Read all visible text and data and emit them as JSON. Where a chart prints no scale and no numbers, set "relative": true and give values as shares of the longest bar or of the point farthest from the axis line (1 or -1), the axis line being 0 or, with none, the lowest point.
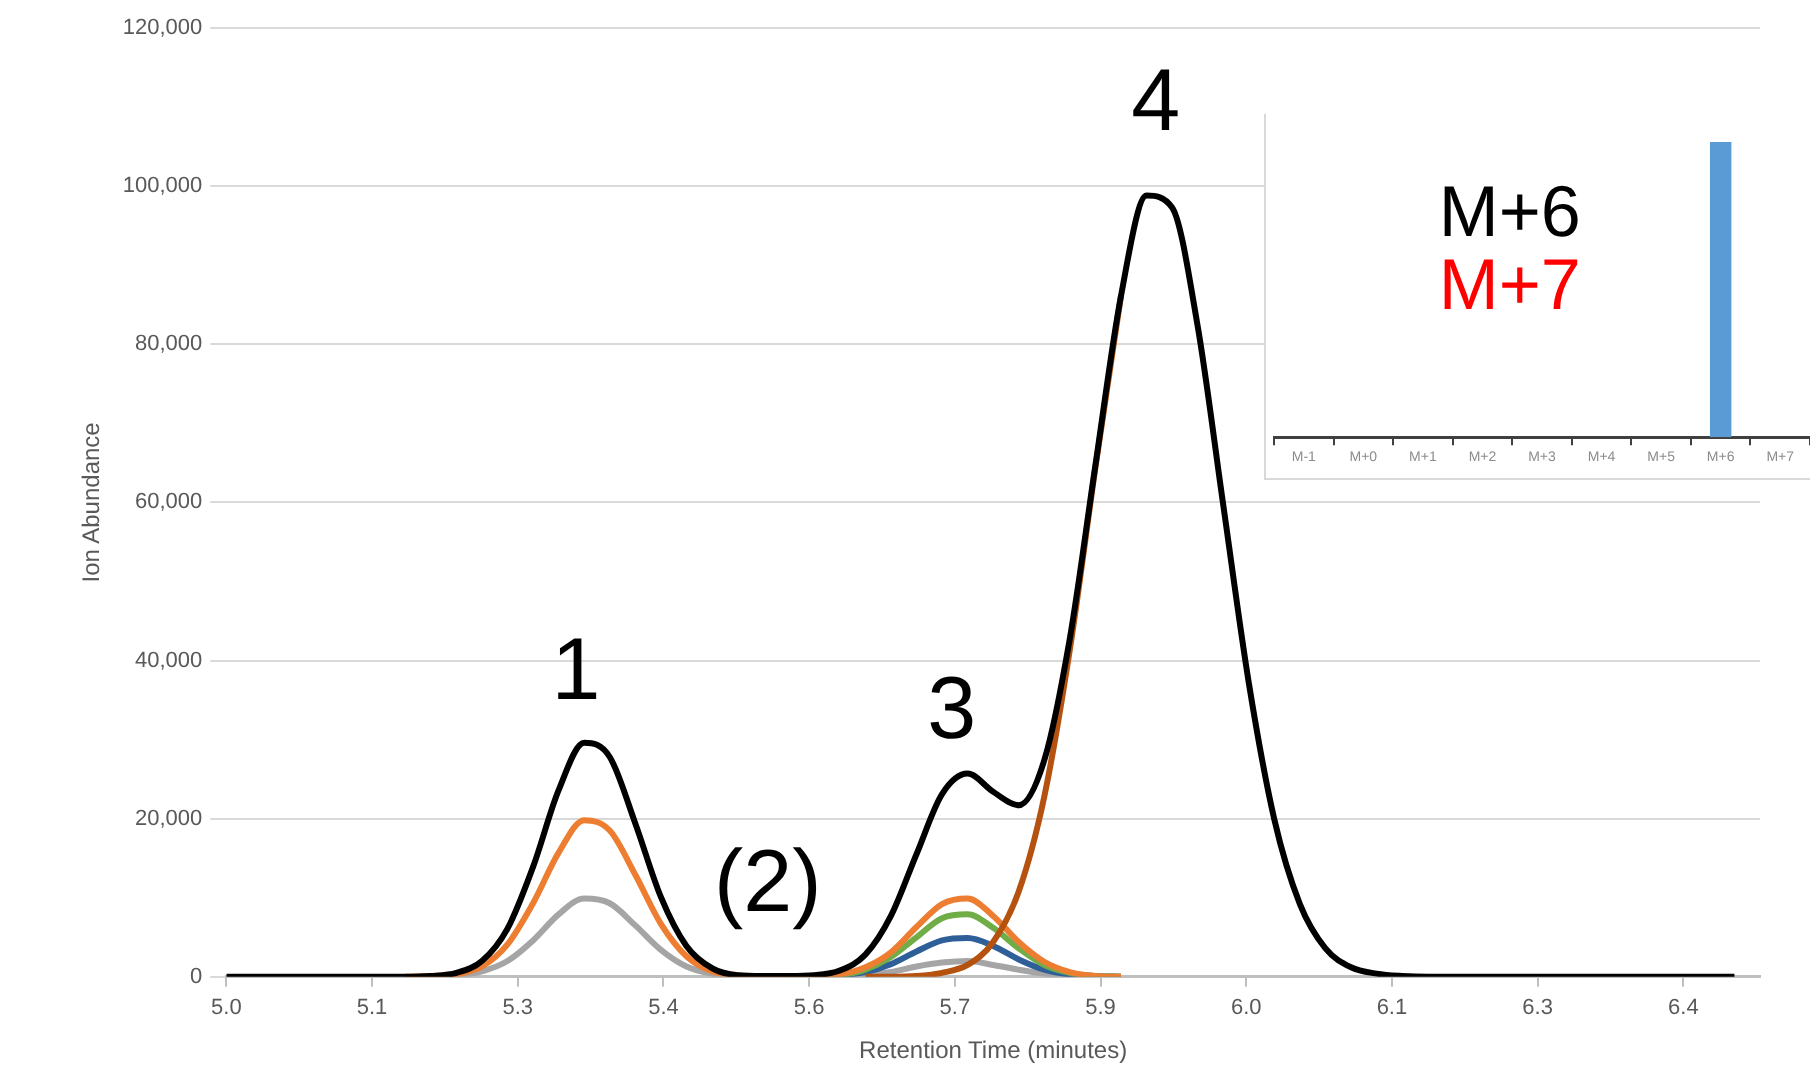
{
  "chart_data": [
    {
      "type": "line",
      "xlabel": "Retention Time (minutes)",
      "ylabel": "Ion Abundance",
      "xlim": [
        5.0,
        6.5
      ],
      "ylim": [
        0,
        120000
      ],
      "xticks": [
        {
          "value": 5.0,
          "label": "5.0"
        },
        {
          "value": 5.1425,
          "label": "5.1"
        },
        {
          "value": 5.285,
          "label": "5.3"
        },
        {
          "value": 5.4275,
          "label": "5.4"
        },
        {
          "value": 5.57,
          "label": "5.6"
        },
        {
          "value": 5.7125,
          "label": "5.7"
        },
        {
          "value": 5.855,
          "label": "5.9"
        },
        {
          "value": 5.9975,
          "label": "6.0"
        },
        {
          "value": 6.14,
          "label": "6.1"
        },
        {
          "value": 6.2825,
          "label": "6.3"
        },
        {
          "value": 6.425,
          "label": "6.4"
        }
      ],
      "yticks": [
        {
          "value": 0,
          "label": "0"
        },
        {
          "value": 20000,
          "label": "20,000"
        },
        {
          "value": 40000,
          "label": "40,000"
        },
        {
          "value": 60000,
          "label": "60,000"
        },
        {
          "value": 80000,
          "label": "80,000"
        },
        {
          "value": 100000,
          "label": "100,000"
        },
        {
          "value": 120000,
          "label": "120,000"
        }
      ],
      "grid": "y",
      "marker": "none",
      "series": [
        {
          "color": "#a5a5a5",
          "x": [
            5.175,
            5.2,
            5.225,
            5.25,
            5.275,
            5.3,
            5.325,
            5.35,
            5.375,
            5.4,
            5.425,
            5.45,
            5.475,
            5.5,
            5.525,
            5.55,
            5.575,
            5.6,
            5.625,
            5.65,
            5.675,
            5.7,
            5.725,
            5.75,
            5.775,
            5.8,
            5.825,
            5.85,
            5.875
          ],
          "values": [
            0,
            0,
            200,
            700,
            2000,
            4600,
            7900,
            9900,
            9300,
            6500,
            3400,
            1300,
            400,
            100,
            0,
            0,
            0,
            100,
            200,
            600,
            1300,
            1800,
            2000,
            1500,
            900,
            400,
            100,
            0,
            0
          ]
        },
        {
          "color": "#2f5f98",
          "x": [
            5.55,
            5.575,
            5.6,
            5.625,
            5.65,
            5.675,
            5.7,
            5.725,
            5.75,
            5.775,
            5.8,
            5.825,
            5.85,
            5.875
          ],
          "values": [
            0,
            0,
            200,
            600,
            1600,
            3200,
            4600,
            4900,
            3900,
            2200,
            900,
            300,
            100,
            0
          ]
        },
        {
          "color": "#70ad47",
          "x": [
            5.55,
            5.575,
            5.6,
            5.625,
            5.65,
            5.675,
            5.7,
            5.725,
            5.75,
            5.775,
            5.8,
            5.825,
            5.85,
            5.875
          ],
          "values": [
            0,
            0,
            200,
            900,
            2500,
            5000,
            7400,
            7900,
            6200,
            3600,
            1500,
            500,
            100,
            0
          ]
        },
        {
          "color": "#ed7d31",
          "x": [
            5.175,
            5.2,
            5.225,
            5.25,
            5.275,
            5.3,
            5.325,
            5.35,
            5.375,
            5.4,
            5.425,
            5.45,
            5.475,
            5.5,
            5.525,
            5.55,
            5.575,
            5.6,
            5.625,
            5.65,
            5.675,
            5.7,
            5.725,
            5.75,
            5.775,
            5.8,
            5.825,
            5.85,
            5.875
          ],
          "values": [
            0,
            100,
            300,
            1300,
            4100,
            9300,
            15700,
            19800,
            18500,
            12900,
            6700,
            2600,
            700,
            200,
            0,
            0,
            100,
            300,
            1200,
            3100,
            6300,
            9200,
            9900,
            7700,
            4400,
            1900,
            600,
            100,
            0
          ]
        },
        {
          "color": "#b5520f",
          "x": [
            5.625,
            5.65,
            5.675,
            5.7,
            5.725,
            5.75,
            5.775,
            5.8,
            5.825,
            5.85,
            5.875
          ],
          "values": [
            0,
            0,
            100,
            500,
            1500,
            4400,
            10800,
            22800,
            41400,
            64400,
            86100
          ]
        },
        {
          "color": "#000000",
          "x": [
            5.0,
            5.025,
            5.05,
            5.075,
            5.1,
            5.125,
            5.15,
            5.175,
            5.2,
            5.225,
            5.25,
            5.275,
            5.3,
            5.325,
            5.35,
            5.375,
            5.4,
            5.425,
            5.45,
            5.475,
            5.5,
            5.525,
            5.55,
            5.575,
            5.6,
            5.625,
            5.65,
            5.675,
            5.7,
            5.725,
            5.75,
            5.775,
            5.8,
            5.825,
            5.85,
            5.875,
            5.9,
            5.925,
            5.95,
            5.975,
            6.0,
            6.025,
            6.05,
            6.075,
            6.1,
            6.125,
            6.15,
            6.175,
            6.2,
            6.225,
            6.25,
            6.275,
            6.3,
            6.325,
            6.35,
            6.375,
            6.4,
            6.425,
            6.45,
            6.475
          ],
          "values": [
            0,
            0,
            0,
            0,
            0,
            0,
            0,
            0,
            100,
            500,
            2000,
            6100,
            13900,
            23600,
            29600,
            27800,
            19400,
            10100,
            3900,
            1100,
            200,
            100,
            100,
            200,
            800,
            2800,
            7700,
            15500,
            23100,
            25700,
            23400,
            21700,
            27400,
            42800,
            64700,
            86100,
            98800,
            97300,
            82300,
            59700,
            37200,
            19900,
            9200,
            3600,
            1200,
            400,
            100,
            0,
            0,
            0,
            0,
            0,
            0,
            0,
            0,
            0,
            0,
            0,
            0,
            0
          ]
        }
      ],
      "annotations": [
        "1",
        "(2)",
        "3",
        "4"
      ]
    },
    {
      "type": "bar",
      "categories": [
        "M-1",
        "M+0",
        "M+1",
        "M+2",
        "M+3",
        "M+4",
        "M+5",
        "M+6",
        "M+7"
      ],
      "values": [
        0,
        0,
        0,
        0,
        0,
        0,
        0,
        1,
        0
      ],
      "color": "#5b9bd5",
      "relative": true,
      "annotations": [
        "M+6",
        "M+7"
      ]
    }
  ]
}
